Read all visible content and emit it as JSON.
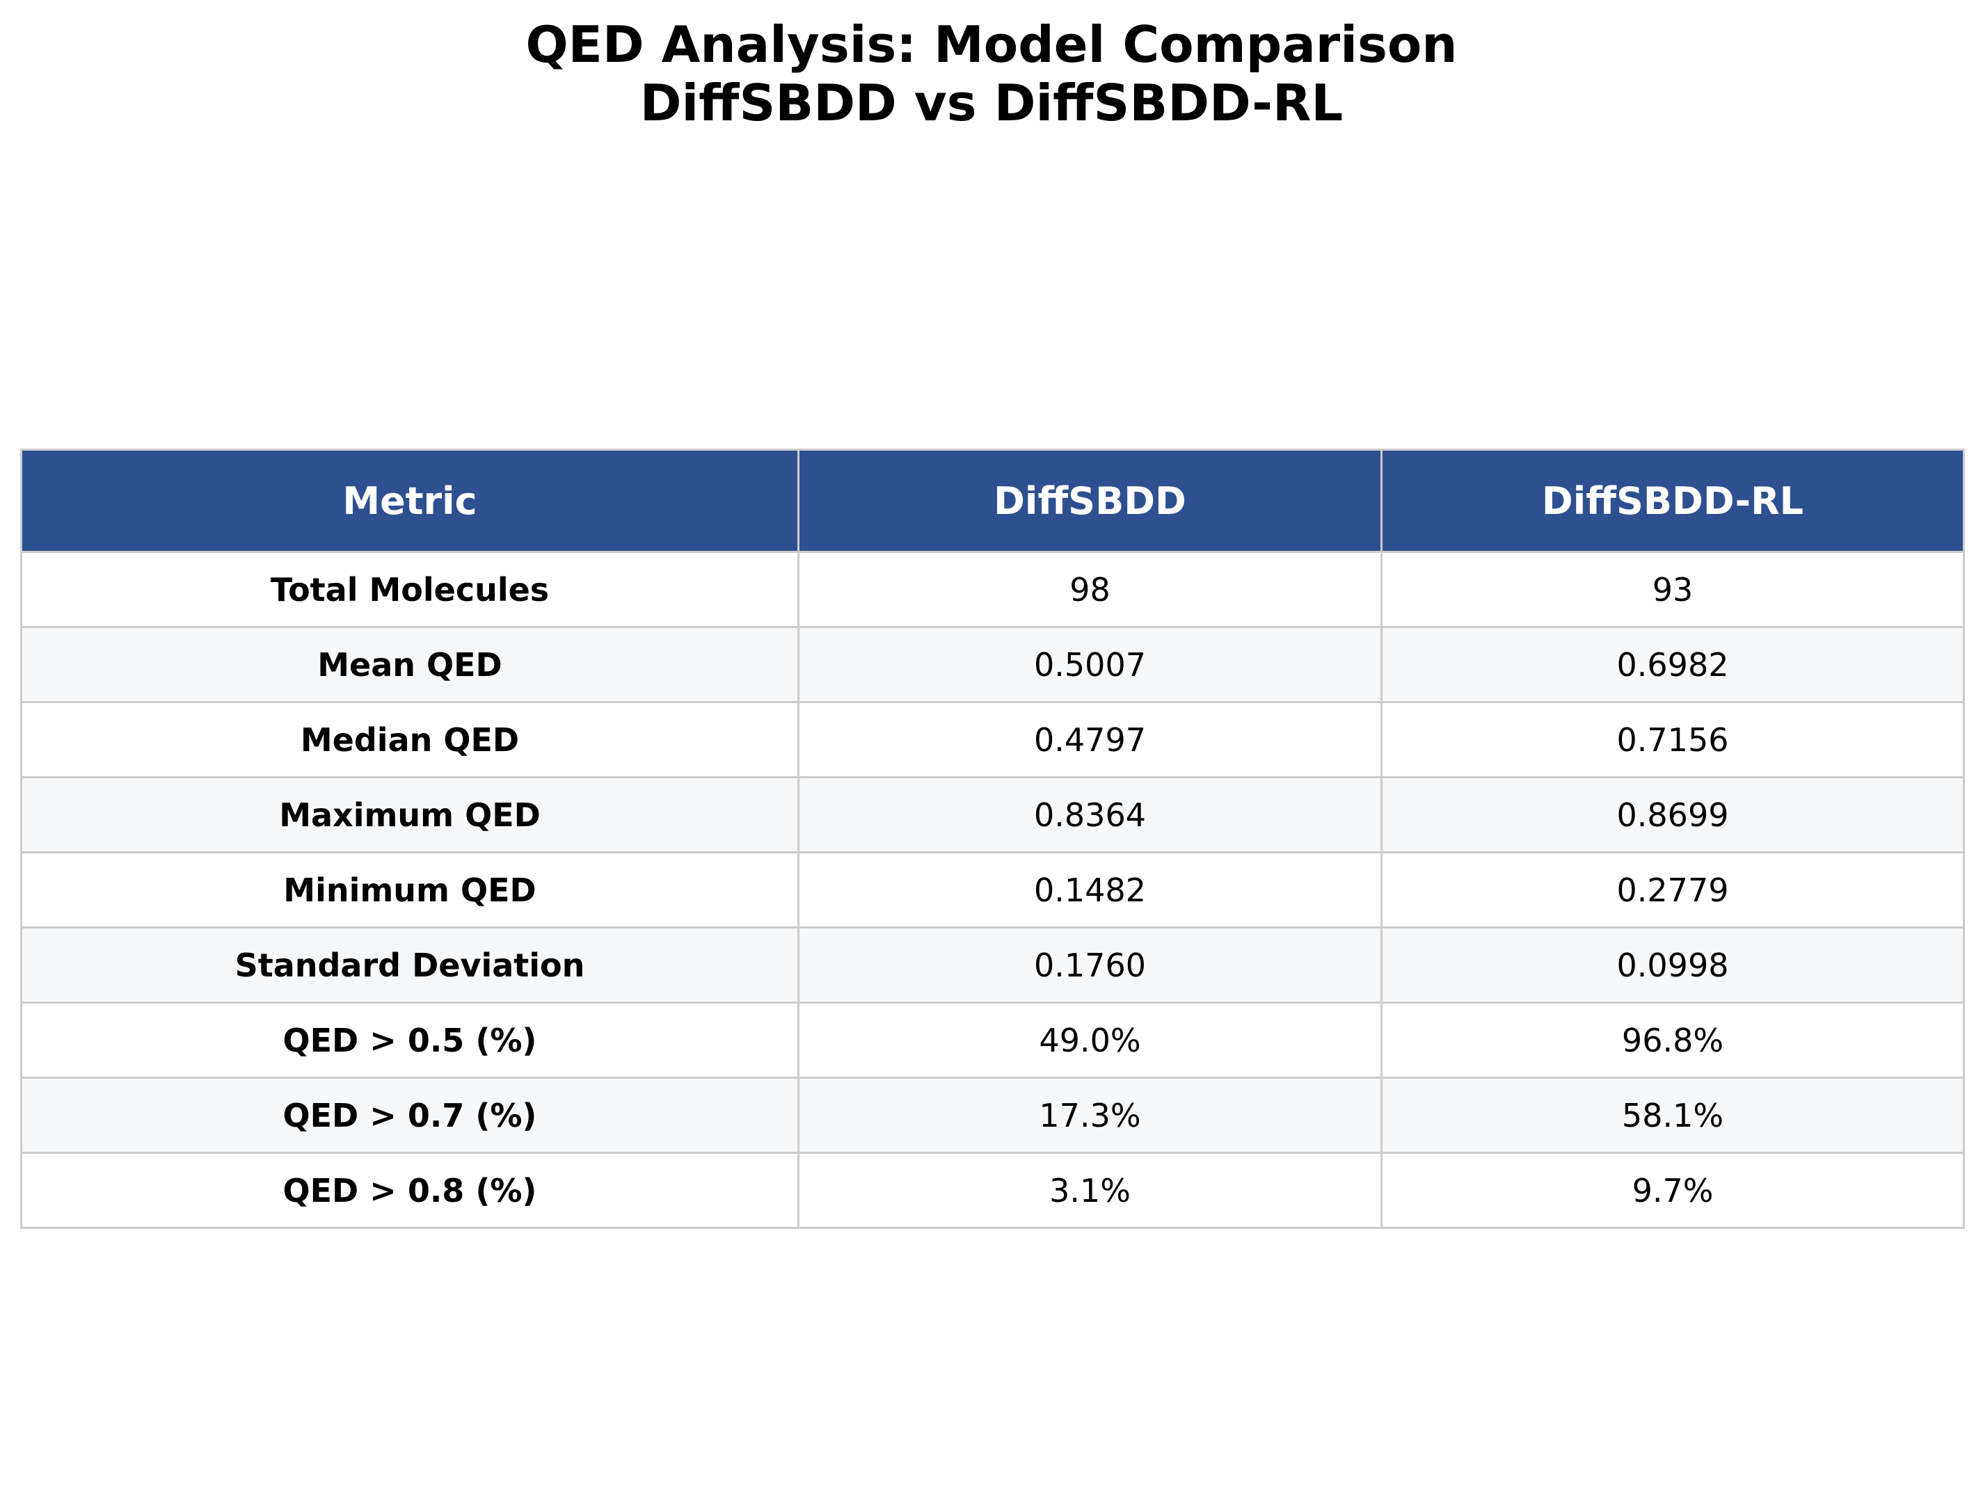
{
  "chart_data": {
    "type": "table",
    "title": "QED Analysis: Model Comparison",
    "subtitle": "DiffSBDD vs DiffSBDD-RL",
    "columns": [
      "Metric",
      "DiffSBDD",
      "DiffSBDD-RL"
    ],
    "rows": [
      [
        "Total Molecules",
        "98",
        "93"
      ],
      [
        "Mean QED",
        "0.5007",
        "0.6982"
      ],
      [
        "Median QED",
        "0.4797",
        "0.7156"
      ],
      [
        "Maximum QED",
        "0.8364",
        "0.8699"
      ],
      [
        "Minimum QED",
        "0.1482",
        "0.2779"
      ],
      [
        "Standard Deviation",
        "0.1760",
        "0.0998"
      ],
      [
        "QED > 0.5 (%)",
        "49.0%",
        "96.8%"
      ],
      [
        "QED > 0.7 (%)",
        "17.3%",
        "58.1%"
      ],
      [
        "QED > 0.8 (%)",
        "3.1%",
        "9.7%"
      ]
    ]
  },
  "colors": {
    "header_background": "#2e5090",
    "header_text": "#ffffff",
    "grid_line": "#cccccc",
    "alternate_row": "#f7f8fa"
  }
}
